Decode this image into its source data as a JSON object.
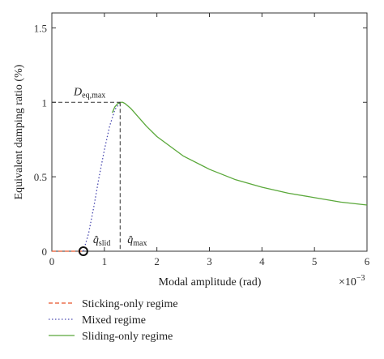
{
  "chart_data": {
    "type": "line",
    "xlabel": "Modal amplitude (rad)",
    "x_multiplier": "×10",
    "x_multiplier_exp": "−3",
    "ylabel": "Equivalent damping ratio (%)",
    "xlim": [
      0,
      6
    ],
    "ylim": [
      0,
      1.6
    ],
    "x_ticks": [
      0,
      1,
      2,
      3,
      4,
      5,
      6
    ],
    "y_ticks": [
      0,
      0.5,
      1,
      1.5
    ],
    "y_tick_labels": [
      "0",
      "0.5",
      "1",
      "1.5"
    ],
    "grid": false,
    "legend_position": "below",
    "series": [
      {
        "name": "Sticking-only regime",
        "color": "#e8542a",
        "style": "dashed",
        "x": [
          0,
          0.6
        ],
        "y": [
          0,
          0
        ]
      },
      {
        "name": "Mixed regime",
        "color": "#4a4ab0",
        "style": "dotted",
        "x": [
          0.6,
          0.7,
          0.8,
          0.9,
          1.0,
          1.1,
          1.2,
          1.3
        ],
        "y": [
          0,
          0.12,
          0.3,
          0.5,
          0.68,
          0.84,
          0.95,
          1.0
        ]
      },
      {
        "name": "Sliding-only regime",
        "color": "#5aa83a",
        "style": "solid",
        "x": [
          1.15,
          1.2,
          1.25,
          1.3,
          1.35,
          1.4,
          1.5,
          1.6,
          1.8,
          2.0,
          2.5,
          3.0,
          3.5,
          4.0,
          4.5,
          5.0,
          5.5,
          6.0
        ],
        "y": [
          0.93,
          0.97,
          0.99,
          1.0,
          1.0,
          0.99,
          0.96,
          0.92,
          0.84,
          0.77,
          0.64,
          0.55,
          0.48,
          0.43,
          0.39,
          0.36,
          0.33,
          0.31
        ]
      }
    ],
    "annotations": {
      "d_eq_max": {
        "base": "D",
        "sub": "eq,max",
        "x": 1.3,
        "y": 1.0
      },
      "q_slid": {
        "base": "q̂",
        "sub": "slid",
        "x": 0.6,
        "y": 0
      },
      "q_max": {
        "base": "q̂",
        "sub": "max",
        "x": 1.3,
        "y": 0
      }
    }
  }
}
